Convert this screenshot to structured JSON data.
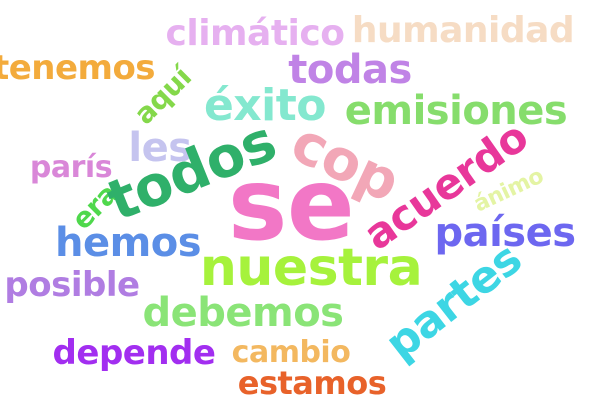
{
  "words": {
    "se": "se",
    "nuestra": "nuestra",
    "todos": "todos",
    "cop": "cop",
    "acuerdo": "acuerdo",
    "exito": "éxito",
    "emisiones": "emisiones",
    "todas": "todas",
    "climatico": "climático",
    "humanidad": "humanidad",
    "tenemos": "tenemos",
    "aqui": "aquí",
    "les": "les",
    "paris": "parís",
    "era": "era",
    "hemos": "hemos",
    "posible": "posible",
    "animo": "ánimo",
    "paises": "países",
    "partes": "partes",
    "debemos": "debemos",
    "depende": "depende",
    "cambio": "cambio",
    "estamos": "estamos"
  },
  "colors": {
    "background": "#ffffff",
    "pink": "#f277c6",
    "lime": "#a6f23c",
    "magenta": "#e8379a",
    "blue": "#5b8ee6",
    "purple": "#a22ef0",
    "orange": "#e8622a",
    "cyan": "#3dd6e4"
  }
}
